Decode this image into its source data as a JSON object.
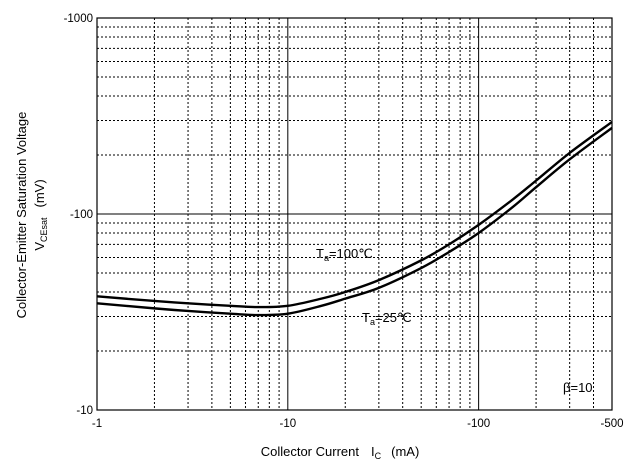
{
  "chart_data": {
    "type": "line",
    "x_scale": "log",
    "y_scale": "log",
    "xlim": [
      -1,
      -500
    ],
    "ylim": [
      -10,
      -1000
    ],
    "grid": true,
    "x_major_ticks": [
      -1,
      -10,
      -100,
      -500
    ],
    "x_tick_labels": [
      "-1",
      "-10",
      "-100",
      "-500"
    ],
    "y_major_ticks": [
      -10,
      -100,
      -1000
    ],
    "y_tick_labels": [
      "-10",
      "-100",
      "-1000"
    ],
    "xlabel": {
      "main": "Collector Current",
      "symbol": "I",
      "symbol_sub": "C",
      "unit": "(mA)"
    },
    "ylabel": {
      "line1": "Collector-Emitter Saturation Voltage",
      "symbol": "V",
      "symbol_sub": "CEsat",
      "unit": "(mV)"
    },
    "annotation": "β=10",
    "series": [
      {
        "name": "Ta=100℃",
        "label_main": "T",
        "label_sub": "a",
        "label_rest": "=100℃",
        "x": [
          -1,
          -2,
          -3,
          -5,
          -7,
          -10,
          -15,
          -20,
          -30,
          -50,
          -70,
          -100,
          -150,
          -200,
          -300,
          -500
        ],
        "y": [
          -38,
          -36,
          -35,
          -34,
          -33.5,
          -34,
          -37,
          -40,
          -46,
          -58,
          -70,
          -88,
          -118,
          -148,
          -205,
          -295
        ]
      },
      {
        "name": "Ta=25℃",
        "label_main": "T",
        "label_sub": "a",
        "label_rest": "=25℃",
        "x": [
          -1,
          -2,
          -3,
          -5,
          -7,
          -10,
          -15,
          -20,
          -30,
          -50,
          -70,
          -100,
          -150,
          -200,
          -300,
          -500
        ],
        "y": [
          -35,
          -33,
          -32,
          -31,
          -30.5,
          -31,
          -34,
          -37,
          -42,
          -53,
          -64,
          -80,
          -108,
          -137,
          -190,
          -275
        ]
      }
    ]
  }
}
